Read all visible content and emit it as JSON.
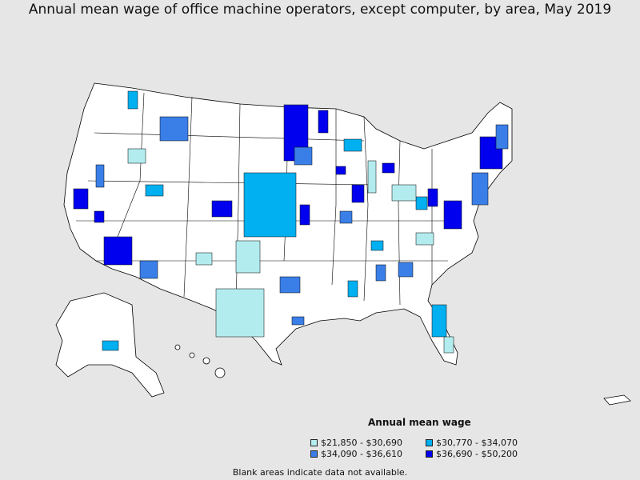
{
  "title": "Annual mean wage of office machine operators, except computer, by area, May 2019",
  "legend": {
    "title": "Annual mean wage",
    "items": [
      {
        "label": "$21,850 - $30,690",
        "color": "#b3ecee"
      },
      {
        "label": "$30,770 - $34,070",
        "color": "#00b0f0"
      },
      {
        "label": "$34,090 - $36,610",
        "color": "#3a7fe8"
      },
      {
        "label": "$36,690 - $50,200",
        "color": "#0000ee"
      }
    ]
  },
  "footnote": "Blank areas indicate data not available.",
  "colors": {
    "background": "#e6e6e6",
    "land": "#ffffff",
    "border": "#000000"
  }
}
